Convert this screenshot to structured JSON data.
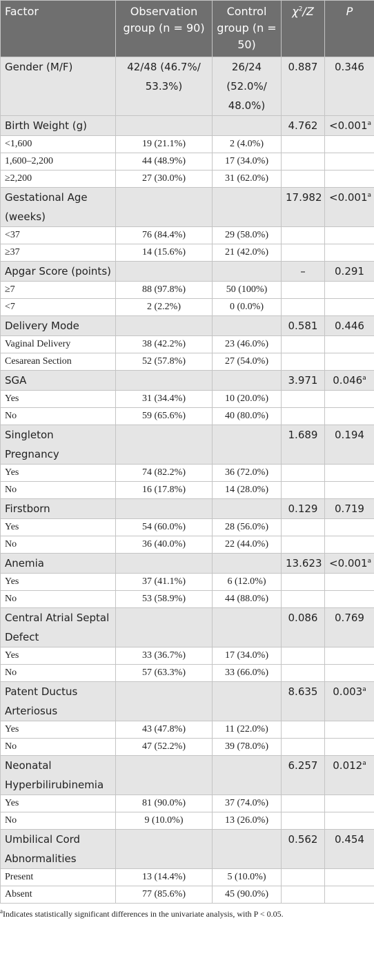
{
  "header": {
    "factor": "Factor",
    "observation": "Observation group (n = 90)",
    "control": "Control group (n = 50)",
    "chi": {
      "base": "χ",
      "sup": "2",
      "rest": "/Z"
    },
    "p": "P"
  },
  "rows": [
    {
      "factor": "Gender (M/F)",
      "observation": "42/48 (46.7%/ 53.3%)",
      "control": "26/24 (52.0%/ 48.0%)",
      "chi": "0.887",
      "p": "0.346"
    },
    {
      "factor": "Birth Weight (g)",
      "chi": "4.762",
      "p": "<0.001",
      "p_note": "a",
      "subs": [
        [
          "<1,600",
          "19 (21.1%)",
          "2 (4.0%)"
        ],
        [
          "1,600–2,200",
          "44 (48.9%)",
          "17 (34.0%)"
        ],
        [
          "≥2,200",
          "27 (30.0%)",
          "31 (62.0%)"
        ]
      ]
    },
    {
      "factor": "Gestational Age (weeks)",
      "chi": "17.982",
      "p": "<0.001",
      "p_note": "a",
      "subs": [
        [
          "<37",
          "76 (84.4%)",
          "29 (58.0%)"
        ],
        [
          "≥37",
          "14 (15.6%)",
          "21 (42.0%)"
        ]
      ]
    },
    {
      "factor": "Apgar Score (points)",
      "chi": "–",
      "p": "0.291",
      "subs": [
        [
          "≥7",
          "88 (97.8%)",
          "50 (100%)"
        ],
        [
          "<7",
          "2 (2.2%)",
          "0 (0.0%)"
        ]
      ]
    },
    {
      "factor": "Delivery Mode",
      "chi": "0.581",
      "p": "0.446",
      "subs": [
        [
          "Vaginal Delivery",
          "38 (42.2%)",
          "23 (46.0%)"
        ],
        [
          "Cesarean Section",
          "52 (57.8%)",
          "27 (54.0%)"
        ]
      ]
    },
    {
      "factor": "SGA",
      "chi": "3.971",
      "p": "0.046",
      "p_note": "a",
      "subs": [
        [
          "Yes",
          "31 (34.4%)",
          "10 (20.0%)"
        ],
        [
          "No",
          "59 (65.6%)",
          "40 (80.0%)"
        ]
      ]
    },
    {
      "factor": "Singleton Pregnancy",
      "chi": "1.689",
      "p": "0.194",
      "subs": [
        [
          "Yes",
          "74 (82.2%)",
          "36 (72.0%)"
        ],
        [
          "No",
          "16 (17.8%)",
          "14 (28.0%)"
        ]
      ]
    },
    {
      "factor": "Firstborn",
      "chi": "0.129",
      "p": "0.719",
      "subs": [
        [
          "Yes",
          "54 (60.0%)",
          "28 (56.0%)"
        ],
        [
          "No",
          "36 (40.0%)",
          "22 (44.0%)"
        ]
      ]
    },
    {
      "factor": "Anemia",
      "chi": "13.623",
      "p": "<0.001",
      "p_note": "a",
      "subs": [
        [
          "Yes",
          "37 (41.1%)",
          "6 (12.0%)"
        ],
        [
          "No",
          "53 (58.9%)",
          "44 (88.0%)"
        ]
      ]
    },
    {
      "factor": "Central Atrial Septal Defect",
      "chi": "0.086",
      "p": "0.769",
      "subs": [
        [
          "Yes",
          "33 (36.7%)",
          "17 (34.0%)"
        ],
        [
          "No",
          "57 (63.3%)",
          "33 (66.0%)"
        ]
      ]
    },
    {
      "factor": "Patent Ductus Arteriosus",
      "chi": "8.635",
      "p": "0.003",
      "p_note": "a",
      "subs": [
        [
          "Yes",
          "43 (47.8%)",
          "11 (22.0%)"
        ],
        [
          "No",
          "47 (52.2%)",
          "39 (78.0%)"
        ]
      ]
    },
    {
      "factor": "Neonatal Hyperbilirubinemia",
      "chi": "6.257",
      "p": "0.012",
      "p_note": "a",
      "subs": [
        [
          "Yes",
          "81 (90.0%)",
          "37 (74.0%)"
        ],
        [
          "No",
          "9 (10.0%)",
          "13 (26.0%)"
        ]
      ]
    },
    {
      "factor": "Umbilical Cord Abnormalities",
      "chi": "0.562",
      "p": "0.454",
      "subs": [
        [
          "Present",
          "13 (14.4%)",
          "5 (10.0%)"
        ],
        [
          "Absent",
          "77 (85.6%)",
          "45 (90.0%)"
        ]
      ]
    }
  ],
  "footnote": {
    "marker": "a",
    "text": "Indicates statistically significant differences in the univariate analysis, with P < 0.05."
  }
}
